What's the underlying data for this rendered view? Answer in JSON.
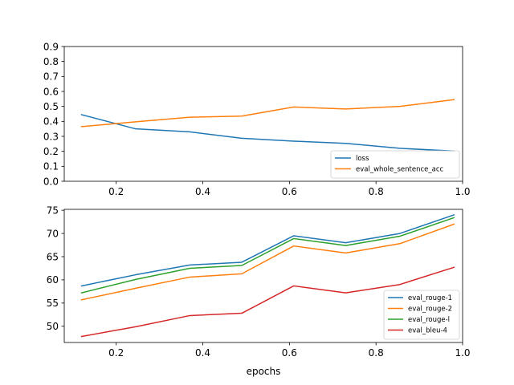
{
  "chart_data": [
    {
      "type": "line",
      "title": "",
      "xlabel": "",
      "ylabel": "",
      "xlim": [
        0.08,
        1.0
      ],
      "ylim": [
        0.0,
        0.9
      ],
      "xticks": [
        0.2,
        0.4,
        0.6,
        0.8,
        1.0
      ],
      "xtick_labels": [
        "0.2",
        "0.4",
        "0.6",
        "0.8",
        "1.0"
      ],
      "yticks": [
        0.0,
        0.1,
        0.2,
        0.3,
        0.4,
        0.5,
        0.6,
        0.7,
        0.8,
        0.9
      ],
      "ytick_labels": [
        "0.0",
        "0.1",
        "0.2",
        "0.3",
        "0.4",
        "0.5",
        "0.6",
        "0.7",
        "0.8",
        "0.9"
      ],
      "grid": false,
      "legend_position": "bottom-right",
      "x": [
        0.12,
        0.245,
        0.37,
        0.49,
        0.61,
        0.73,
        0.855,
        0.98
      ],
      "series": [
        {
          "name": "loss",
          "color": "#1f77b4",
          "values": [
            0.445,
            0.35,
            0.33,
            0.287,
            0.268,
            0.253,
            0.22,
            0.202
          ]
        },
        {
          "name": "eval_whole_sentence_acc",
          "color": "#ff7f0e",
          "values": [
            0.365,
            0.397,
            0.428,
            0.435,
            0.496,
            0.483,
            0.5,
            0.545
          ]
        }
      ]
    },
    {
      "type": "line",
      "title": "",
      "xlabel": "epochs",
      "ylabel": "",
      "xlim": [
        0.08,
        1.0
      ],
      "ylim": [
        46.5,
        75.2
      ],
      "xticks": [
        0.2,
        0.4,
        0.6,
        0.8,
        1.0
      ],
      "xtick_labels": [
        "0.2",
        "0.4",
        "0.6",
        "0.8",
        "1.0"
      ],
      "yticks": [
        50,
        55,
        60,
        65,
        70,
        75
      ],
      "ytick_labels": [
        "50",
        "55",
        "60",
        "65",
        "70",
        "75"
      ],
      "grid": false,
      "legend_position": "bottom-right",
      "x": [
        0.12,
        0.245,
        0.37,
        0.49,
        0.61,
        0.73,
        0.855,
        0.98
      ],
      "series": [
        {
          "name": "eval_rouge-1",
          "color": "#1f77b4",
          "values": [
            58.7,
            61.1,
            63.2,
            63.8,
            69.5,
            68.0,
            70.0,
            74.0
          ]
        },
        {
          "name": "eval_rouge-2",
          "color": "#ff7f0e",
          "values": [
            55.7,
            58.2,
            60.6,
            61.3,
            67.3,
            65.8,
            67.8,
            72.0
          ]
        },
        {
          "name": "eval_rouge-l",
          "color": "#2ca02c",
          "values": [
            57.2,
            60.1,
            62.5,
            63.1,
            68.9,
            67.4,
            69.4,
            73.4
          ]
        },
        {
          "name": "eval_bleu-4",
          "color": "#d62728",
          "values": [
            47.8,
            49.9,
            52.3,
            52.8,
            58.7,
            57.2,
            59.0,
            62.7
          ]
        }
      ]
    }
  ]
}
